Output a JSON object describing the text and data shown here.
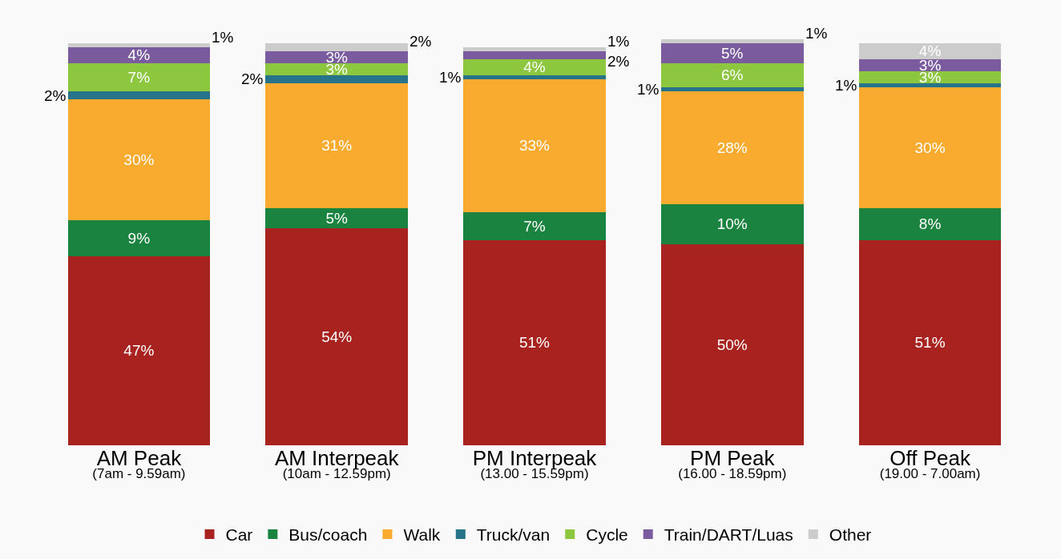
{
  "chart_data": {
    "type": "bar",
    "stacked": true,
    "legend": "bottom",
    "categories": [
      "AM Peak\n(7am - 9.59am)",
      "AM Interpeak\n(10am - 12.59pm)",
      "PM Interpeak\n(13.00 - 15.59pm)",
      "PM Peak\n(16.00 - 18.59pm)",
      "Off Peak\n(19.00 - 7.00am)"
    ],
    "series": [
      {
        "name": "Car",
        "color": "#a8231f",
        "values": [
          47,
          54,
          51,
          50,
          51
        ],
        "value_labels": [
          "47%",
          "54%",
          "51%",
          "50%",
          "51%"
        ]
      },
      {
        "name": "Bus/coach",
        "color": "#1b8340",
        "values": [
          9,
          5,
          7,
          10,
          8
        ],
        "value_labels": [
          "9%",
          "5%",
          "7%",
          "10%",
          "8%"
        ]
      },
      {
        "name": "Walk",
        "color": "#f9ab2f",
        "values": [
          30,
          31,
          33,
          28,
          30
        ],
        "value_labels": [
          "30%",
          "31%",
          "33%",
          "28%",
          "30%"
        ]
      },
      {
        "name": "Truck/van",
        "color": "#26738a",
        "values": [
          2,
          2,
          1,
          1,
          1
        ],
        "value_labels": [
          "2%",
          "2%",
          "1%",
          "1%",
          "1%"
        ]
      },
      {
        "name": "Cycle",
        "color": "#8dc63f",
        "values": [
          7,
          3,
          4,
          6,
          3
        ],
        "value_labels": [
          "7%",
          "3%",
          "4%",
          "6%",
          "3%"
        ]
      },
      {
        "name": "Train/DART/Luas",
        "color": "#7a5c9e",
        "values": [
          4,
          3,
          2,
          5,
          3
        ],
        "value_labels": [
          "4%",
          "3%",
          "2%",
          "5%",
          "3%"
        ]
      },
      {
        "name": "Other",
        "color": "#cccccc",
        "values": [
          1,
          2,
          1,
          1,
          4
        ],
        "value_labels": [
          "1%",
          "2%",
          "1%",
          "1%",
          "4%"
        ]
      }
    ]
  }
}
